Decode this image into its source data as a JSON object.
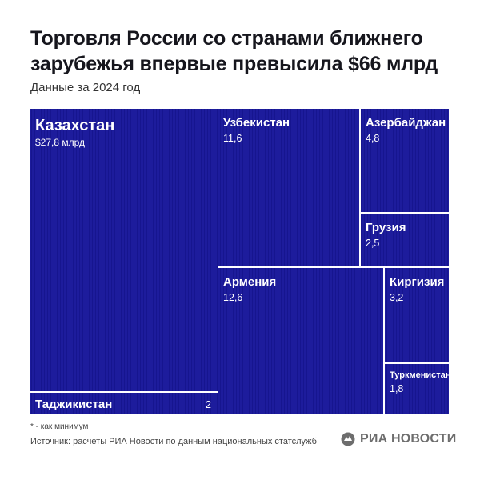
{
  "title": "Торговля России со странами ближнего зарубежья впервые превысила $66 млрд",
  "subtitle": "Данные за 2024 год",
  "chart_data": {
    "type": "treemap",
    "title": "Торговля России со странами ближнего зарубежья впервые превысила $66 млрд",
    "subtitle": "Данные за 2024 год",
    "unit": "млрд $",
    "items": [
      {
        "name": "Казахстан",
        "value": 27.8,
        "value_label": "$27,8 млрд"
      },
      {
        "name": "Узбекистан",
        "value": 11.6,
        "value_label": "11,6"
      },
      {
        "name": "Азербайджан",
        "value": 4.8,
        "value_label": "4,8"
      },
      {
        "name": "Грузия",
        "value": 2.5,
        "value_label": "2,5"
      },
      {
        "name": "Армения",
        "value": 12.6,
        "value_label": "12,6"
      },
      {
        "name": "Киргизия",
        "value": 3.2,
        "value_label": "3,2"
      },
      {
        "name": "Туркменистан*",
        "value": 1.8,
        "value_label": "1,8"
      },
      {
        "name": "Таджикистан",
        "value": 2,
        "value_label": "2"
      }
    ],
    "colors": {
      "fill": "#1d1c9c",
      "border": "#ffffff",
      "stripe": "#15148a"
    }
  },
  "footnote": "* - как минимум",
  "source": "Источник: расчеты РИА Новости по данным национальных статслужб",
  "logo_text": "РИА НОВОСТИ"
}
